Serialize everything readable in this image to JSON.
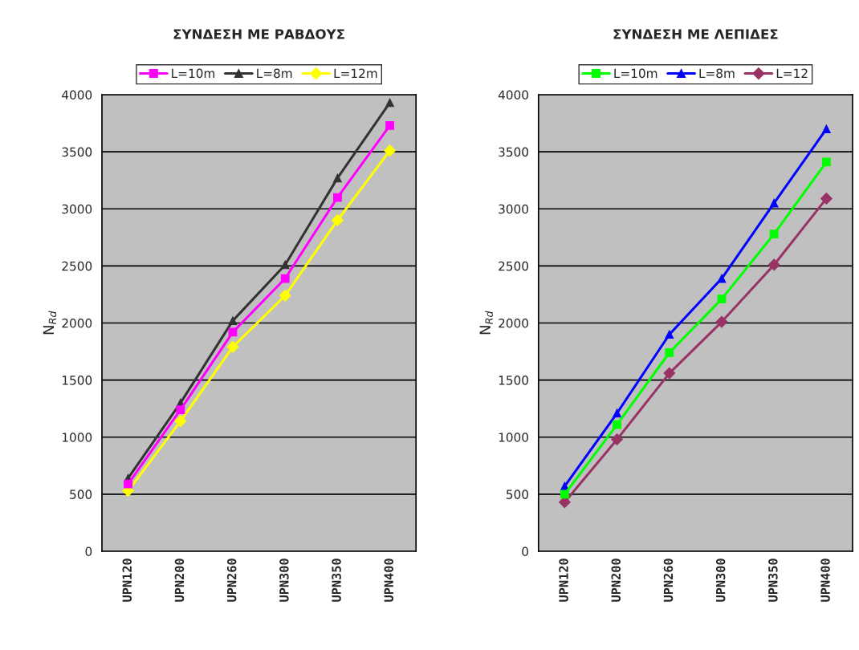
{
  "chart_data": [
    {
      "type": "line",
      "title": "ΣΥΝΔΕΣΗ ΜΕ ΡΑΒΔΟΥΣ",
      "ylabel": "N$_{Rd}$",
      "categories": [
        "UPN120",
        "UPN200",
        "UPN260",
        "UPN300",
        "UPN350",
        "UPN400"
      ],
      "ylim": [
        0,
        4000
      ],
      "yticks": [
        0,
        500,
        1000,
        1500,
        2000,
        2500,
        3000,
        3500,
        4000
      ],
      "grid": "y",
      "legend": "top",
      "series": [
        {
          "name": "L=10m",
          "color": "#ff00ff",
          "marker": "square",
          "values": [
            590,
            1240,
            1920,
            2390,
            3100,
            3730
          ]
        },
        {
          "name": "L=8m",
          "color": "#333333",
          "marker": "triangle",
          "values": [
            640,
            1300,
            2020,
            2510,
            3270,
            3930
          ]
        },
        {
          "name": "L=12m",
          "color": "#ffff00",
          "marker": "diamond",
          "values": [
            530,
            1140,
            1790,
            2240,
            2900,
            3510
          ]
        }
      ]
    },
    {
      "type": "line",
      "title": "ΣΥΝΔΕΣΗ ΜΕ ΛΕΠΙΔΕΣ",
      "ylabel": "N$_{Rd}$",
      "categories": [
        "UPN120",
        "UPN200",
        "UPN260",
        "UPN300",
        "UPN350",
        "UPN400"
      ],
      "ylim": [
        0,
        4000
      ],
      "yticks": [
        0,
        500,
        1000,
        1500,
        2000,
        2500,
        3000,
        3500,
        4000
      ],
      "grid": "y",
      "legend": "top",
      "series": [
        {
          "name": "L=10m",
          "color": "#00ff00",
          "marker": "square",
          "values": [
            500,
            1110,
            1740,
            2210,
            2780,
            3410
          ]
        },
        {
          "name": "L=8m",
          "color": "#0000ff",
          "marker": "triangle",
          "values": [
            570,
            1210,
            1900,
            2390,
            3050,
            3700
          ]
        },
        {
          "name": "L=12",
          "color": "#993366",
          "marker": "diamond",
          "values": [
            430,
            980,
            1560,
            2010,
            2510,
            3090
          ]
        }
      ]
    }
  ]
}
